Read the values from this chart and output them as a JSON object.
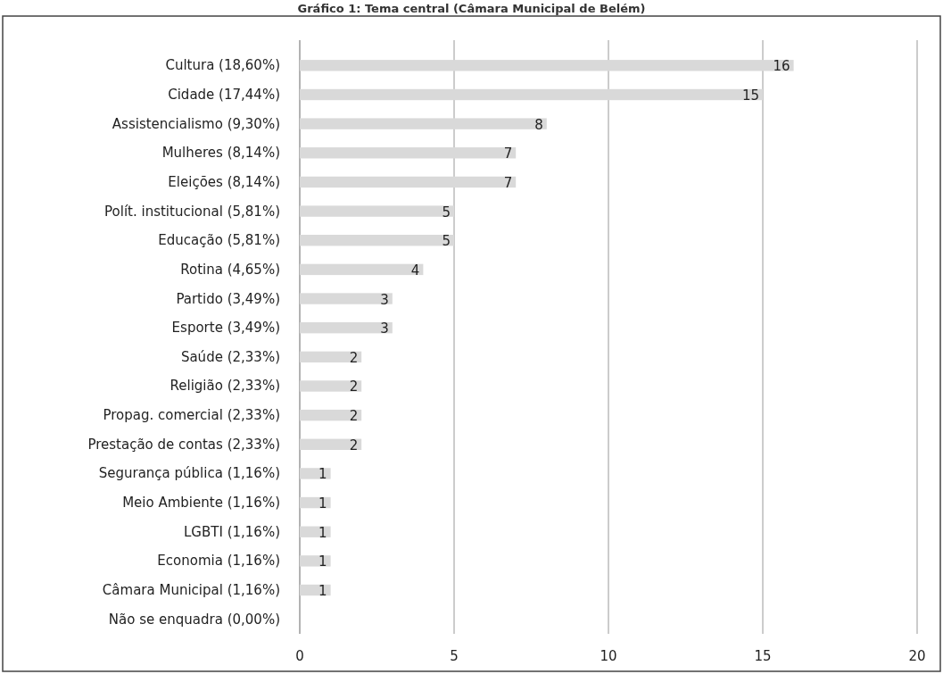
{
  "chart_data": {
    "type": "bar",
    "orientation": "horizontal",
    "title": "Gráfico 1: Tema central (Câmara Municipal de Belém)",
    "categories": [
      "Cultura (18,60%)",
      "Cidade (17,44%)",
      "Assistencialismo (9,30%)",
      "Mulheres (8,14%)",
      "Eleições (8,14%)",
      "Polít. institucional (5,81%)",
      "Educação (5,81%)",
      "Rotina (4,65%)",
      "Partido (3,49%)",
      "Esporte (3,49%)",
      "Saúde (2,33%)",
      "Religião (2,33%)",
      "Propag. comercial (2,33%)",
      "Prestação de contas (2,33%)",
      "Segurança pública (1,16%)",
      "Meio Ambiente (1,16%)",
      "LGBTI (1,16%)",
      "Economia (1,16%)",
      "Câmara Municipal (1,16%)",
      "Não se enquadra (0,00%)"
    ],
    "values": [
      16,
      15,
      8,
      7,
      7,
      5,
      5,
      4,
      3,
      3,
      2,
      2,
      2,
      2,
      1,
      1,
      1,
      1,
      1,
      0
    ],
    "value_labels": [
      "16",
      "15",
      "8",
      "7",
      "7",
      "5",
      "5",
      "4",
      "3",
      "3",
      "2",
      "2",
      "2",
      "2",
      "1",
      "1",
      "1",
      "1",
      "1",
      null
    ],
    "color": "#d9d9d9",
    "xlim": [
      0,
      20
    ],
    "xticks": [
      0,
      5,
      10,
      15,
      20
    ],
    "grid": "x"
  }
}
